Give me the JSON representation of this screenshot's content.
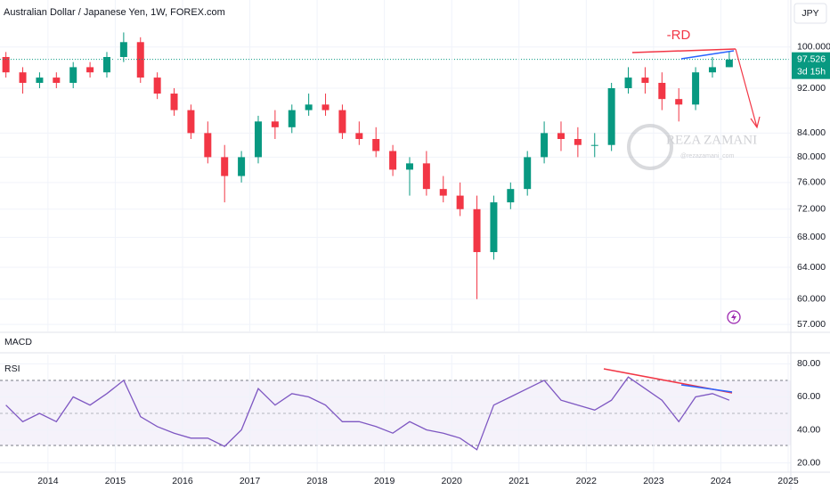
{
  "header": {
    "title": "Australian Dollar / Japanese Yen, 1W, FOREX.com",
    "currency": "JPY",
    "macd": "MACD"
  },
  "chart_data": [
    {
      "type": "candlestick",
      "log_scale": true,
      "grid": true,
      "up_color": "#089981",
      "down_color": "#f23645",
      "x": [
        2013.375,
        2013.625,
        2013.875,
        2014.125,
        2014.375,
        2014.625,
        2014.875,
        2015.125,
        2015.375,
        2015.625,
        2015.875,
        2016.125,
        2016.375,
        2016.625,
        2016.875,
        2017.125,
        2017.375,
        2017.625,
        2017.875,
        2018.125,
        2018.375,
        2018.625,
        2018.875,
        2019.125,
        2019.375,
        2019.625,
        2019.875,
        2020.125,
        2020.375,
        2020.625,
        2020.875,
        2021.125,
        2021.375,
        2021.625,
        2021.875,
        2022.125,
        2022.375,
        2022.625,
        2022.875,
        2023.125,
        2023.375,
        2023.625,
        2023.875,
        2024.125
      ],
      "open": [
        98,
        95,
        93,
        94,
        93,
        96,
        95,
        98,
        101,
        94,
        91,
        88,
        84,
        80,
        77,
        80,
        86,
        85,
        88,
        89,
        88,
        84,
        83,
        81,
        78,
        79,
        75,
        74,
        72,
        66,
        73,
        75,
        80,
        84,
        83,
        82,
        82,
        92,
        94,
        93,
        90,
        89,
        95,
        96
      ],
      "high": [
        99,
        96,
        95,
        95,
        97,
        97,
        99,
        103,
        102,
        95,
        92,
        89,
        86,
        82,
        81,
        87,
        88,
        89,
        91,
        91,
        89,
        86,
        85,
        82,
        80,
        81,
        77,
        76,
        74,
        74,
        76,
        81,
        86,
        86,
        85,
        84,
        93,
        96,
        96,
        95,
        92,
        96,
        98,
        99
      ],
      "low": [
        94,
        91,
        92,
        92,
        92,
        94,
        94,
        97,
        93,
        90,
        87,
        83,
        79,
        73,
        76,
        79,
        83,
        84,
        87,
        87,
        83,
        82,
        80,
        77,
        74,
        74,
        73,
        71,
        60,
        65,
        72,
        74,
        79,
        81,
        80,
        80,
        81,
        91,
        91,
        88,
        86,
        88,
        94,
        96
      ],
      "close": [
        95,
        93,
        94,
        93,
        96,
        95,
        98,
        101,
        94,
        91,
        88,
        84,
        80,
        77,
        80,
        86,
        85,
        88,
        89,
        88,
        84,
        83,
        81,
        78,
        79,
        75,
        74,
        72,
        66,
        73,
        75,
        80,
        84,
        83,
        82,
        82,
        92,
        94,
        93,
        90,
        89,
        95,
        96,
        97.5
      ],
      "xlim": [
        2013.287,
        2025.04
      ],
      "ylim": [
        56.2,
        110
      ],
      "yticks": [
        {
          "value": 100,
          "label": "100.000"
        },
        {
          "value": 92,
          "label": "92.000"
        },
        {
          "value": 84,
          "label": "84.000"
        },
        {
          "value": 80,
          "label": "80.000"
        },
        {
          "value": 76,
          "label": "76.000"
        },
        {
          "value": 72,
          "label": "72.000"
        },
        {
          "value": 68,
          "label": "68.000"
        },
        {
          "value": 64,
          "label": "64.000"
        },
        {
          "value": 60,
          "label": "60.000"
        },
        {
          "value": 57,
          "label": "57.000"
        }
      ],
      "last_price": 97.526,
      "last_color": "#089981",
      "countdown": "3d 15h",
      "annotation": "-RD",
      "watermark": "REZA ZAMANI",
      "watermark_sub": "@rezazamani_com"
    },
    {
      "type": "line",
      "title": "RSI",
      "grid": true,
      "x": [
        2013.375,
        2013.625,
        2013.875,
        2014.125,
        2014.375,
        2014.625,
        2014.875,
        2015.125,
        2015.375,
        2015.625,
        2015.875,
        2016.125,
        2016.375,
        2016.625,
        2016.875,
        2017.125,
        2017.375,
        2017.625,
        2017.875,
        2018.125,
        2018.375,
        2018.625,
        2018.875,
        2019.125,
        2019.375,
        2019.625,
        2019.875,
        2020.125,
        2020.375,
        2020.625,
        2020.875,
        2021.125,
        2021.375,
        2021.625,
        2021.875,
        2022.125,
        2022.375,
        2022.625,
        2022.875,
        2023.125,
        2023.375,
        2023.625,
        2023.875,
        2024.125
      ],
      "series": [
        {
          "color": "#7e57c2",
          "values": [
            55,
            45,
            50,
            45,
            60,
            55,
            62,
            70,
            48,
            42,
            38,
            35,
            35,
            30,
            40,
            65,
            55,
            62,
            60,
            55,
            45,
            45,
            42,
            38,
            45,
            40,
            38,
            35,
            28,
            55,
            60,
            65,
            70,
            58,
            55,
            52,
            58,
            72,
            65,
            58,
            45,
            60,
            62,
            58
          ]
        }
      ],
      "xlim": [
        2013.287,
        2025.04
      ],
      "ylim": [
        14.4,
        85.6
      ],
      "yticks": [
        {
          "value": 80,
          "label": "80.00"
        },
        {
          "value": 60,
          "label": "60.00"
        },
        {
          "value": 40,
          "label": "40.00"
        },
        {
          "value": 20,
          "label": "20.00"
        }
      ],
      "xticks": [
        2014,
        2015,
        2016,
        2017,
        2018,
        2019,
        2020,
        2021,
        2022,
        2023,
        2024,
        2025
      ]
    }
  ]
}
